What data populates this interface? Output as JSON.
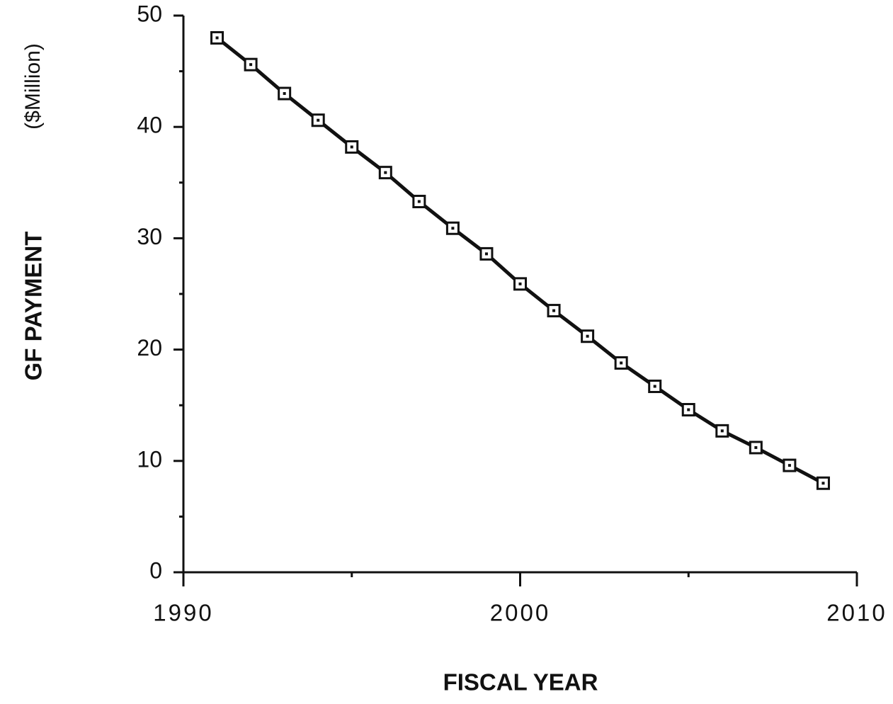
{
  "chart_data": {
    "type": "line",
    "xlabel": "FISCAL YEAR",
    "ylabel": "GF PAYMENT",
    "ylabel_unit": "($Million)",
    "x": [
      1991,
      1992,
      1993,
      1994,
      1995,
      1996,
      1997,
      1998,
      1999,
      2000,
      2001,
      2002,
      2003,
      2004,
      2005,
      2006,
      2007,
      2008,
      2009
    ],
    "series": [
      {
        "color": "#111111",
        "values": [
          48.0,
          45.6,
          43.0,
          40.6,
          38.2,
          35.9,
          33.3,
          30.9,
          28.6,
          25.9,
          23.5,
          21.2,
          18.8,
          16.7,
          14.6,
          12.7,
          11.2,
          9.6,
          8.0
        ]
      }
    ],
    "xlim": [
      1990,
      2010
    ],
    "xticks": [
      1990,
      2000,
      2010
    ],
    "xminorticks": [
      1995,
      2005
    ],
    "ylim": [
      0,
      50
    ],
    "yticks": [
      0,
      10,
      20,
      30,
      40,
      50
    ],
    "yminorticks": [
      5,
      15,
      25,
      35,
      45
    ],
    "grid": false
  }
}
